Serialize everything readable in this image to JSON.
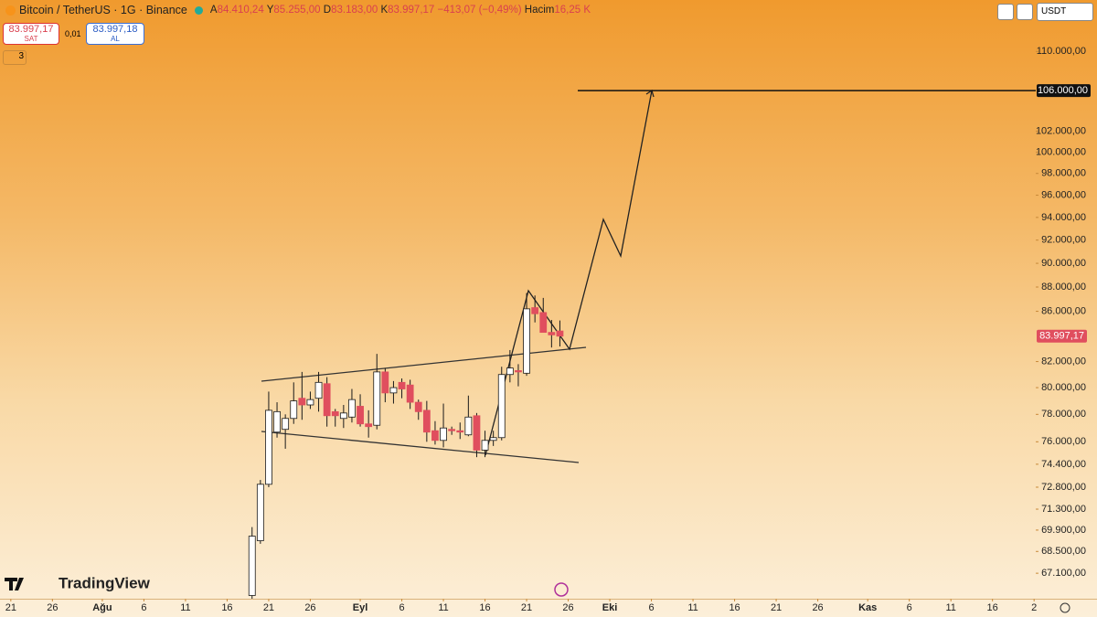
{
  "header": {
    "symbol": "Bitcoin / TetherUS · 1G · Binance",
    "ohlc": [
      {
        "label": "A",
        "value": "84.410,24"
      },
      {
        "label": "Y",
        "value": "85.255,00"
      },
      {
        "label": "D",
        "value": "83.183,00"
      },
      {
        "label": "K",
        "value": "83.997,17"
      }
    ],
    "change": "−413,07 (−0,49%)",
    "volume_label": "Hacim",
    "volume": "16,25 K"
  },
  "trade": {
    "sell_price": "83.997,17",
    "sell": "SAT",
    "spread": "0,01",
    "buy_price": "83.997,18",
    "buy": "AL"
  },
  "indicators_count": "3",
  "currency": "USDT",
  "brand": "TradingView",
  "chart_data": {
    "type": "candlestick",
    "log_scale": true,
    "up_color": "#ffffff",
    "down_color": "#e04e5e",
    "wick_color": "#1a1a1a",
    "x": [
      29,
      30,
      31,
      32,
      33,
      34,
      35,
      36,
      37,
      38,
      39,
      40,
      41,
      42,
      43,
      44,
      45,
      46,
      47,
      48,
      49,
      50,
      51,
      52,
      53,
      54,
      55,
      56,
      57,
      58,
      59,
      60,
      61,
      62,
      63,
      64,
      65,
      66
    ],
    "open": [
      65700,
      69200,
      73000,
      76700,
      76900,
      77700,
      79200,
      78700,
      79200,
      80300,
      78200,
      77700,
      77800,
      78600,
      77300,
      77200,
      81200,
      79600,
      80400,
      80200,
      78900,
      78300,
      76800,
      76100,
      76900,
      76800,
      76500,
      77900,
      75400,
      76100,
      76300,
      81000,
      81300,
      81100,
      86300,
      85900,
      84300,
      84410.24
    ],
    "high": [
      70100,
      73300,
      79700,
      78900,
      78000,
      80400,
      81200,
      79700,
      81200,
      80800,
      78400,
      78700,
      79900,
      79500,
      78300,
      82600,
      81500,
      80500,
      80700,
      80600,
      79100,
      79000,
      77500,
      78800,
      77100,
      77400,
      79400,
      78100,
      76800,
      76800,
      81600,
      82900,
      81800,
      87500,
      87300,
      87100,
      85300,
      85255
    ],
    "low": [
      65000,
      69000,
      72800,
      76300,
      75500,
      77300,
      77600,
      78400,
      78200,
      77100,
      77100,
      77000,
      77400,
      77100,
      76300,
      76900,
      78900,
      78800,
      79200,
      78400,
      77600,
      76000,
      75800,
      75600,
      76500,
      76200,
      76400,
      74900,
      74900,
      75700,
      76100,
      80400,
      80100,
      80900,
      85100,
      84300,
      83100,
      83183
    ],
    "close": [
      69500,
      73000,
      78300,
      78200,
      77700,
      79000,
      78700,
      79100,
      80400,
      77900,
      77900,
      78100,
      79100,
      77300,
      77100,
      81200,
      79600,
      80000,
      79900,
      78900,
      78200,
      76700,
      76100,
      77000,
      76800,
      76700,
      77800,
      75400,
      76100,
      76300,
      81000,
      81500,
      81200,
      86200,
      85800,
      84300,
      84100,
      83997.17
    ],
    "xlim": [
      -1.3,
      123.2
    ],
    "xticks": [
      {
        "value": 0,
        "label": "21"
      },
      {
        "value": 5,
        "label": "26"
      },
      {
        "value": 11,
        "label": "Ağu"
      },
      {
        "value": 16,
        "label": "6"
      },
      {
        "value": 21,
        "label": "11"
      },
      {
        "value": 26,
        "label": "16"
      },
      {
        "value": 31,
        "label": "21"
      },
      {
        "value": 36,
        "label": "26"
      },
      {
        "value": 42,
        "label": "Eyl"
      },
      {
        "value": 47,
        "label": "6"
      },
      {
        "value": 52,
        "label": "11"
      },
      {
        "value": 57,
        "label": "16"
      },
      {
        "value": 62,
        "label": "21"
      },
      {
        "value": 67,
        "label": "26"
      },
      {
        "value": 72,
        "label": "Eki"
      },
      {
        "value": 77,
        "label": "6"
      },
      {
        "value": 82,
        "label": "11"
      },
      {
        "value": 87,
        "label": "16"
      },
      {
        "value": 92,
        "label": "21"
      },
      {
        "value": 97,
        "label": "26"
      },
      {
        "value": 103,
        "label": "Kas"
      },
      {
        "value": 108,
        "label": "6"
      },
      {
        "value": 113,
        "label": "11"
      },
      {
        "value": 118,
        "label": "16"
      },
      {
        "value": 123,
        "label": "2"
      }
    ],
    "ylim": [
      65500,
      115500
    ],
    "yticks": [
      {
        "value": 110000,
        "label": "110.000,00"
      },
      {
        "value": 102000,
        "label": "102.000,00"
      },
      {
        "value": 100000,
        "label": "100.000,00"
      },
      {
        "value": 98000,
        "label": "98.000,00"
      },
      {
        "value": 96000,
        "label": "96.000,00"
      },
      {
        "value": 94000,
        "label": "94.000,00"
      },
      {
        "value": 92000,
        "label": "92.000,00"
      },
      {
        "value": 90000,
        "label": "90.000,00"
      },
      {
        "value": 88000,
        "label": "88.000,00"
      },
      {
        "value": 86000,
        "label": "86.000,00"
      },
      {
        "value": 82000,
        "label": "82.000,00"
      },
      {
        "value": 80000,
        "label": "80.000,00"
      },
      {
        "value": 78000,
        "label": "78.000,00"
      },
      {
        "value": 76000,
        "label": "76.000,00"
      },
      {
        "value": 74400,
        "label": "74.400,00"
      },
      {
        "value": 72800,
        "label": "72.800,00"
      },
      {
        "value": 71300,
        "label": "71.300,00"
      },
      {
        "value": 69900,
        "label": "69.900,00"
      },
      {
        "value": 68500,
        "label": "68.500,00"
      },
      {
        "value": 67100,
        "label": "67.100,00"
      }
    ],
    "price_line": {
      "value": 106000,
      "label": "106.000,00"
    },
    "last_price": {
      "value": 83997.17,
      "label": "83.997,17"
    }
  }
}
